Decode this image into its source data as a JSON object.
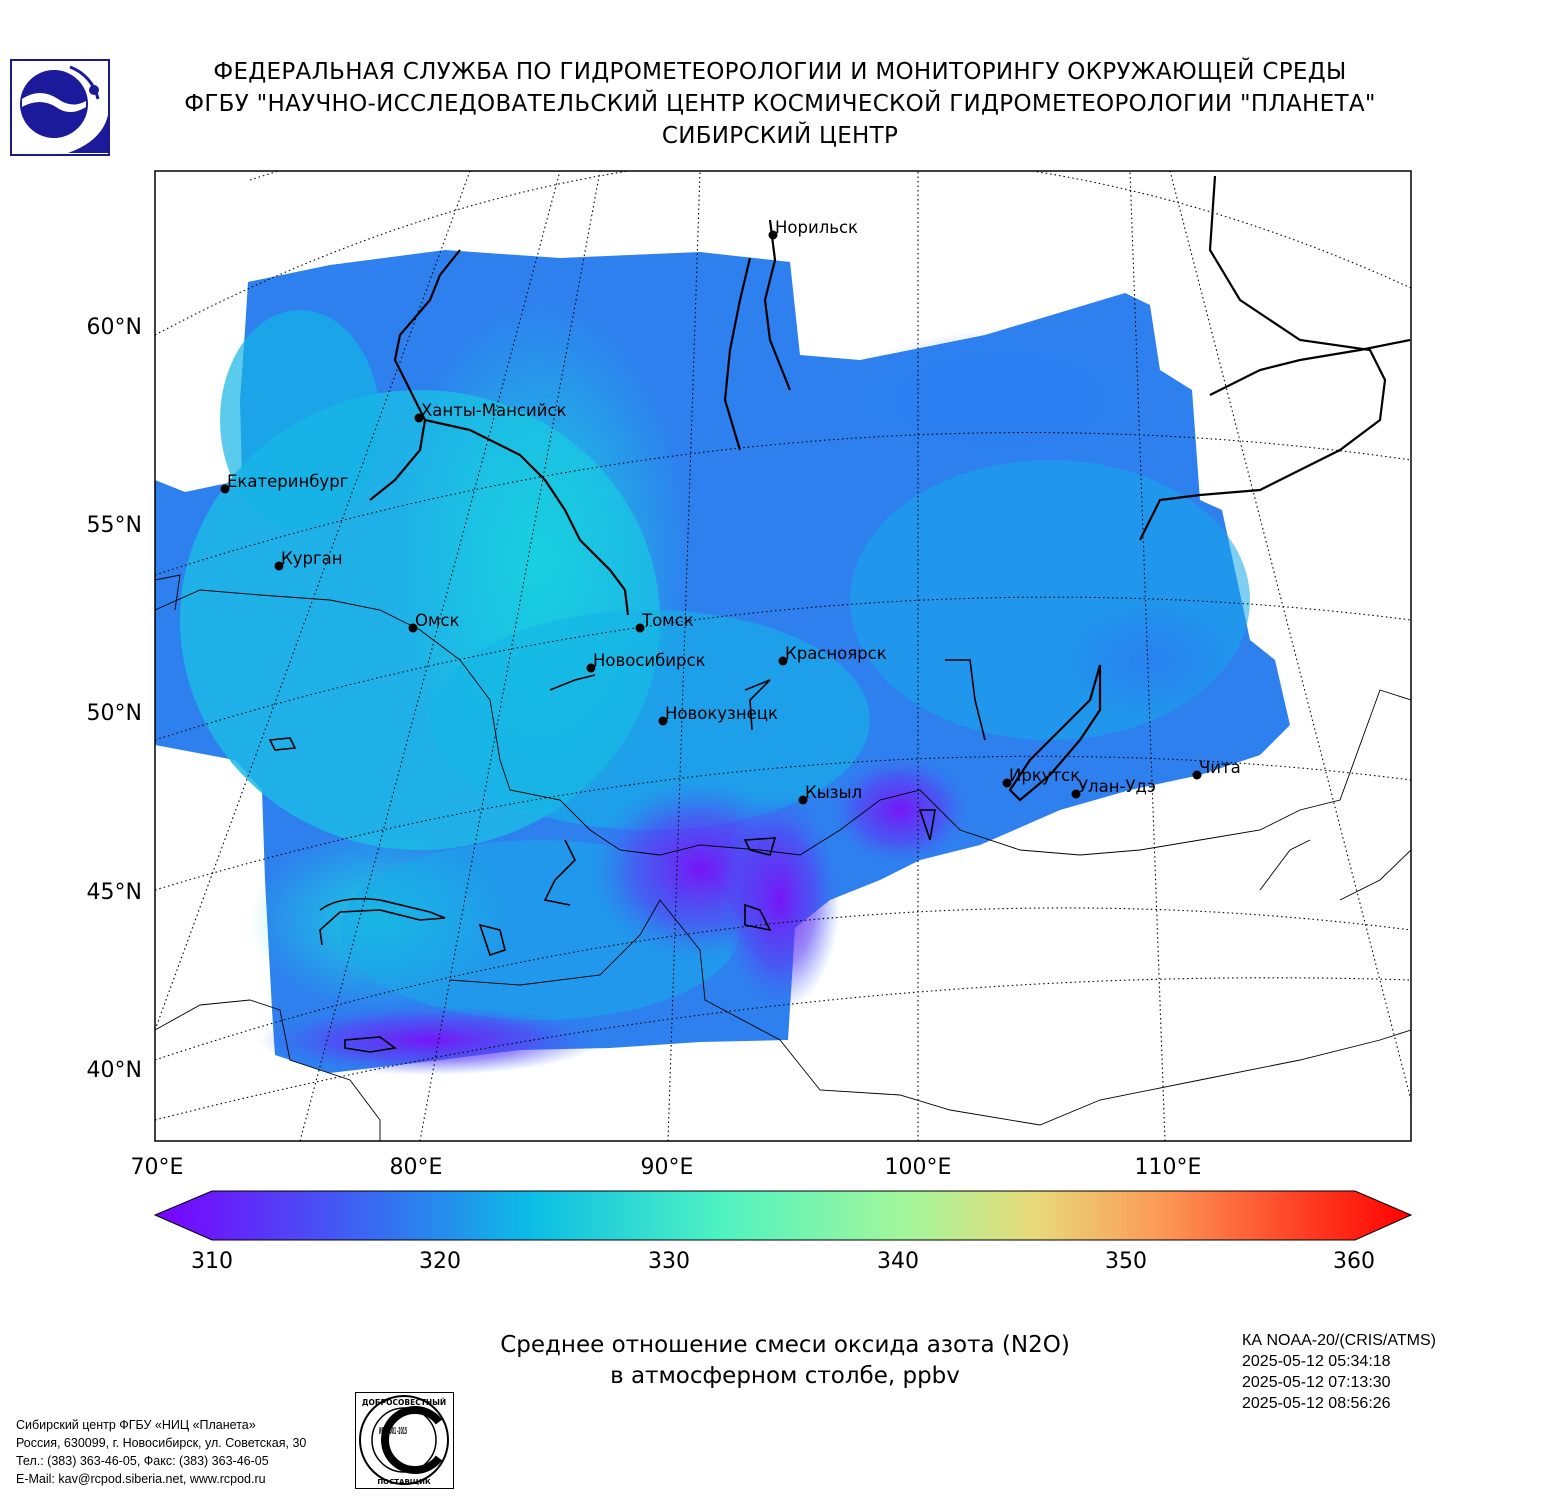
{
  "header": {
    "line1": "ФЕДЕРАЛЬНАЯ СЛУЖБА ПО ГИДРОМЕТЕОРОЛОГИИ И МОНИТОРИНГУ ОКРУЖАЮЩЕЙ СРЕДЫ",
    "line2": "ФГБУ \"НАУЧНО-ИССЛЕДОВАТЕЛЬСКИЙ ЦЕНТР КОСМИЧЕСКОЙ ГИДРОМЕТЕОРОЛОГИИ \"ПЛАНЕТА\"",
    "line3": "СИБИРСКИЙ ЦЕНТР"
  },
  "map": {
    "lat_labels": [
      "60°N",
      "55°N",
      "50°N",
      "45°N",
      "40°N"
    ],
    "lon_labels": [
      "70°E",
      "80°E",
      "90°E",
      "100°E",
      "110°E"
    ],
    "cities": [
      {
        "name": "Норильск"
      },
      {
        "name": "Ханты-Мансийск"
      },
      {
        "name": "Екатеринбург"
      },
      {
        "name": "Курган"
      },
      {
        "name": "Омск"
      },
      {
        "name": "Томск"
      },
      {
        "name": "Новосибирск"
      },
      {
        "name": "Красноярск"
      },
      {
        "name": "Новокузнецк"
      },
      {
        "name": "Иркутск"
      },
      {
        "name": "Улан-Удэ"
      },
      {
        "name": "Чита"
      },
      {
        "name": "Кызыл"
      }
    ]
  },
  "colorbar": {
    "min": 310,
    "max": 360,
    "tick_labels": [
      "310",
      "320",
      "330",
      "340",
      "350",
      "360"
    ],
    "colors": [
      "#7a00ff",
      "#3c6cf4",
      "#16c8e0",
      "#56f0c0",
      "#a6f59a",
      "#f4a862",
      "#ff3a20",
      "#ff0000"
    ]
  },
  "title": {
    "line1": "Среднее отношение смеси оксида азота (N2O)",
    "line2": "в атмосферном столбе, ppbv"
  },
  "satellite": {
    "line1": "КА NOAA-20/(CRIS/ATMS)",
    "line2": "2025-05-12 05:34:18",
    "line3": "2025-05-12 07:13:30",
    "line4": "2025-05-12 08:56:26"
  },
  "contacts": {
    "line1": "Сибирский центр ФГБУ «НИЦ «Планета»",
    "line2": "Россия, 630099, г. Новосибирск, ул. Советская, 30",
    "line3": "Тел.: (383) 363-46-05, Факс: (383) 363-46-05",
    "line4": "E-Mail: kav@rcpod.siberia.net, www.rcpod.ru"
  },
  "iso_logo": {
    "top_text": "ДОБРОСОВЕСТНЫЙ",
    "center_text": "ИСО 9001 -2015",
    "bottom_text": "ПОСТАВЩИК"
  }
}
